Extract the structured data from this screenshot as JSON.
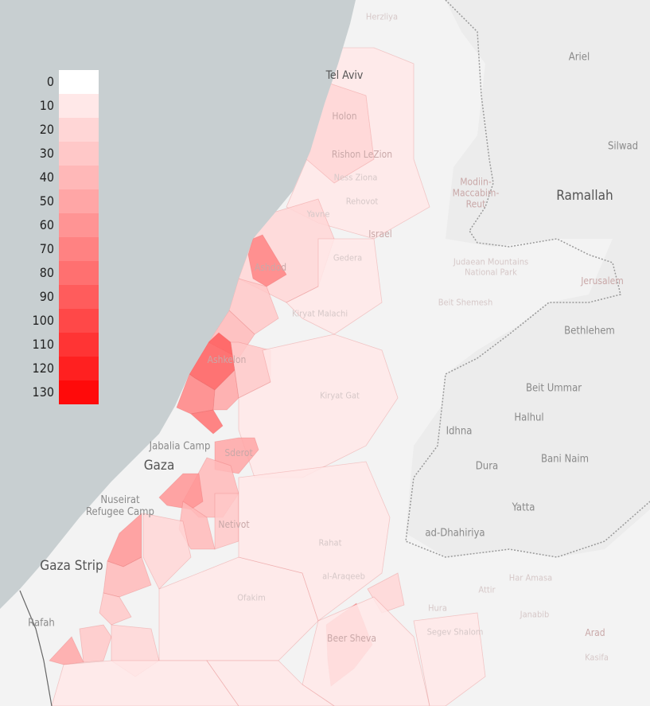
{
  "legend": {
    "values": [
      "0",
      "10",
      "20",
      "30",
      "40",
      "50",
      "60",
      "70",
      "80",
      "90",
      "100",
      "110",
      "120",
      "130"
    ],
    "colors": [
      "#ffffff",
      "#ffe8e8",
      "#ffd6d6",
      "#ffc8c8",
      "#ffb8b8",
      "#ffa6a6",
      "#ff9494",
      "#ff8282",
      "#ff7070",
      "#ff5c5c",
      "#ff4848",
      "#ff3434",
      "#ff2020",
      "#ff0a0a"
    ]
  },
  "colors": {
    "sea": "#c8cfd1",
    "land": "#f3f3f3",
    "westbank": "#ebebeb",
    "scale": "#ff0000"
  },
  "places": {
    "herzliya": "Herzliya",
    "tel_aviv": "Tel Aviv",
    "ariel": "Ariel",
    "holon": "Holon",
    "silwad": "Silwad",
    "rishon": "Rishon LeZion",
    "ness_ziona": "Ness Ziona",
    "modiin": "Modiin-\nMaccabim-\nReut",
    "ramallah": "Ramallah",
    "rehovot": "Rehovot",
    "yavne": "Yavne",
    "israel": "Israel",
    "gedera": "Gedera",
    "ashdod": "Ashdod",
    "judaean": "Judaean Mountains\nNational Park",
    "jerusalem": "Jerusalem",
    "beit_shemesh": "Beit Shemesh",
    "kiryat_malachi": "Kiryat Malachi",
    "bethlehem": "Bethlehem",
    "ashkelon": "Ashkelon",
    "kiryat_gat": "Kiryat Gat",
    "beit_ummar": "Beit Ummar",
    "halhul": "Halhul",
    "idhna": "Idhna",
    "jabalia": "Jabalia Camp",
    "sderot": "Sderot",
    "gaza": "Gaza",
    "dura": "Dura",
    "bani_naim": "Bani Naim",
    "nuseirat": "Nuseirat\nRefugee Camp",
    "yatta": "Yatta",
    "netivot": "Netivot",
    "dhahiriya": "ad-Dhahiriya",
    "rahat": "Rahat",
    "gaza_strip": "Gaza Strip",
    "al_araqeeb": "al-Araqeeb",
    "har_amasa": "Har Amasa",
    "ofakim": "Ofakim",
    "attir": "Attir",
    "rafah": "Rafah",
    "hura": "Hura",
    "janabib": "Janabib",
    "beer_sheva": "Beer Sheva",
    "arad": "Arad",
    "segev": "Segev Shalom",
    "kasifa": "Kasifa"
  }
}
